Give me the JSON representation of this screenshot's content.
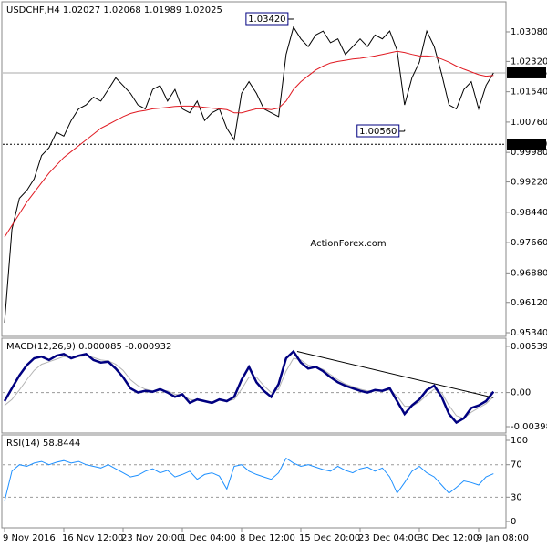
{
  "chart_data": [
    {
      "type": "line",
      "title": "USDCHF,H4  1.02027 1.02068 1.01989 1.02025",
      "watermark": "ActionForex.com",
      "ylim": [
        0.9527,
        1.0383
      ],
      "yticks": [
        {
          "value": 1.0308,
          "label": "1.03080"
        },
        {
          "value": 1.0232,
          "label": "1.02320"
        },
        {
          "value": 1.0154,
          "label": "1.01540"
        },
        {
          "value": 1.0076,
          "label": "1.00760"
        },
        {
          "value": 0.9998,
          "label": "0.99980"
        },
        {
          "value": 0.9922,
          "label": "0.99220"
        },
        {
          "value": 0.9844,
          "label": "0.98440"
        },
        {
          "value": 0.9766,
          "label": "0.97660"
        },
        {
          "value": 0.9688,
          "label": "0.96880"
        },
        {
          "value": 0.9612,
          "label": "0.96120"
        },
        {
          "value": 0.9534,
          "label": "0.95340"
        }
      ],
      "series": [
        {
          "color": "#000000",
          "values": [
            0.956,
            0.98,
            0.988,
            0.99,
            0.993,
            0.999,
            1.001,
            1.005,
            1.004,
            1.008,
            1.011,
            1.012,
            1.014,
            1.013,
            1.016,
            1.019,
            1.017,
            1.015,
            1.012,
            1.011,
            1.016,
            1.017,
            1.013,
            1.016,
            1.011,
            1.01,
            1.013,
            1.008,
            1.01,
            1.011,
            1.006,
            1.003,
            1.015,
            1.018,
            1.015,
            1.011,
            1.01,
            1.009,
            1.025,
            1.032,
            1.029,
            1.027,
            1.03,
            1.031,
            1.028,
            1.029,
            1.025,
            1.027,
            1.029,
            1.027,
            1.03,
            1.029,
            1.031,
            1.026,
            1.012,
            1.019,
            1.023,
            1.031,
            1.027,
            1.02,
            1.012,
            1.011,
            1.016,
            1.018,
            1.011,
            1.017,
            1.02025
          ]
        },
        {
          "color": "#e01a22",
          "values": [
            0.978,
            0.981,
            0.984,
            0.987,
            0.9895,
            0.992,
            0.9945,
            0.9965,
            0.9985,
            1.0,
            1.0015,
            1.003,
            1.0045,
            1.006,
            1.007,
            1.008,
            1.009,
            1.0098,
            1.0103,
            1.0106,
            1.011,
            1.0112,
            1.0114,
            1.0116,
            1.0117,
            1.0117,
            1.0116,
            1.0114,
            1.0112,
            1.011,
            1.0108,
            1.01,
            1.01,
            1.0105,
            1.011,
            1.011,
            1.0108,
            1.0112,
            1.013,
            1.016,
            1.018,
            1.0195,
            1.021,
            1.022,
            1.0228,
            1.0232,
            1.0235,
            1.0238,
            1.024,
            1.0243,
            1.0246,
            1.025,
            1.0254,
            1.0258,
            1.0255,
            1.025,
            1.0246,
            1.0246,
            1.0244,
            1.0238,
            1.023,
            1.022,
            1.0212,
            1.0205,
            1.0198,
            1.0194,
            1.0196
          ]
        }
      ],
      "annotations": [
        {
          "value": 1.0342,
          "label": "1.03420",
          "index": 39
        },
        {
          "value": 1.0056,
          "label": "1.00560",
          "index": 54
        }
      ],
      "last_price": {
        "value": 1.02025,
        "label": "1.02025"
      },
      "level": {
        "value": 1.0019,
        "label": "1.00190"
      }
    },
    {
      "type": "line",
      "title": "MACD(12,26,9) 0.000085 -0.000932",
      "ylim": [
        -0.00462,
        0.00624
      ],
      "yticks": [
        0.005398,
        {
          "value": 0,
          "label": "0.00"
        },
        -0.003981
      ],
      "level_lines": [
        0
      ],
      "series": [
        {
          "color": "#b4b4b4",
          "values": [
            -0.0015,
            -0.0008,
            0.0003,
            0.0015,
            0.0026,
            0.0033,
            0.0036,
            0.0039,
            0.0042,
            0.0041,
            0.0042,
            0.0043,
            0.0041,
            0.0038,
            0.0037,
            0.0033,
            0.0026,
            0.0015,
            0.0008,
            0.0004,
            0.0002,
            0.0003,
            0.0002,
            -0.0002,
            -0.0003,
            -0.0008,
            -0.0009,
            -0.001,
            -0.0011,
            -0.0009,
            -0.001,
            -0.0008,
            0.0004,
            0.0018,
            0.0018,
            0.0008,
            0.0,
            0.0004,
            0.0025,
            0.004,
            0.0038,
            0.0032,
            0.003,
            0.0027,
            0.0021,
            0.0015,
            0.001,
            0.0007,
            0.0004,
            0.0002,
            0.0002,
            0.0002,
            0.0003,
            -0.0004,
            -0.0016,
            -0.0016,
            -0.0011,
            -0.0003,
            0.0004,
            0.0,
            -0.0015,
            -0.0027,
            -0.003,
            -0.0023,
            -0.0018,
            -0.0013,
            -0.0005
          ]
        },
        {
          "color": "#000080",
          "values": [
            -0.001,
            0.0005,
            0.002,
            0.0032,
            0.004,
            0.0042,
            0.0038,
            0.0043,
            0.0045,
            0.004,
            0.0043,
            0.0045,
            0.0038,
            0.0035,
            0.0036,
            0.0028,
            0.0018,
            0.0005,
            0.0,
            0.0002,
            0.0001,
            0.0004,
            0.0,
            -0.0005,
            -0.0002,
            -0.0012,
            -0.0008,
            -0.001,
            -0.0012,
            -0.0008,
            -0.001,
            -0.0005,
            0.0015,
            0.003,
            0.0012,
            0.0002,
            -0.0005,
            0.001,
            0.004,
            0.0048,
            0.0035,
            0.0028,
            0.003,
            0.0025,
            0.0018,
            0.0012,
            0.0008,
            0.0005,
            0.0002,
            0.0,
            0.0003,
            0.0002,
            0.0005,
            -0.001,
            -0.0025,
            -0.0015,
            -0.0008,
            0.0003,
            0.0008,
            -0.0005,
            -0.0025,
            -0.0035,
            -0.003,
            -0.0018,
            -0.0015,
            -0.001,
            0.0001
          ]
        }
      ],
      "trendline": {
        "x": [
          39.5,
          66
        ],
        "values": [
          0.0048,
          -0.0006
        ]
      }
    },
    {
      "type": "line",
      "title": "RSI(14) 58.8444",
      "ylim": [
        -6.7,
        105.6
      ],
      "yticks": [
        100,
        70,
        30,
        0
      ],
      "level_lines": [
        70,
        30
      ],
      "series": [
        {
          "color": "#1e90ff",
          "values": [
            25,
            62,
            70,
            68,
            72,
            74,
            70,
            73,
            75,
            72,
            74,
            70,
            68,
            66,
            70,
            65,
            60,
            55,
            57,
            62,
            65,
            60,
            63,
            55,
            58,
            62,
            52,
            58,
            60,
            56,
            40,
            68,
            70,
            62,
            58,
            55,
            52,
            60,
            78,
            72,
            68,
            70,
            67,
            64,
            62,
            68,
            63,
            60,
            65,
            67,
            62,
            66,
            55,
            35,
            48,
            62,
            68,
            60,
            55,
            45,
            35,
            42,
            50,
            48,
            45,
            55,
            58.8444
          ]
        }
      ],
      "categories": [
        "9 Nov 2016",
        null,
        null,
        null,
        null,
        null,
        null,
        null,
        "16 Nov 12:00",
        null,
        null,
        null,
        null,
        null,
        null,
        null,
        "23 Nov 20:00",
        null,
        null,
        null,
        null,
        null,
        null,
        null,
        "1 Dec 04:00",
        null,
        null,
        null,
        null,
        null,
        null,
        null,
        "8 Dec 12:00",
        null,
        null,
        null,
        null,
        null,
        null,
        null,
        "15 Dec 20:00",
        null,
        null,
        null,
        null,
        null,
        null,
        null,
        "23 Dec 04:00",
        null,
        null,
        null,
        null,
        null,
        null,
        null,
        "30 Dec 12:00",
        null,
        null,
        null,
        null,
        null,
        null,
        null,
        "9 Jan 08:00",
        null,
        null
      ]
    }
  ]
}
